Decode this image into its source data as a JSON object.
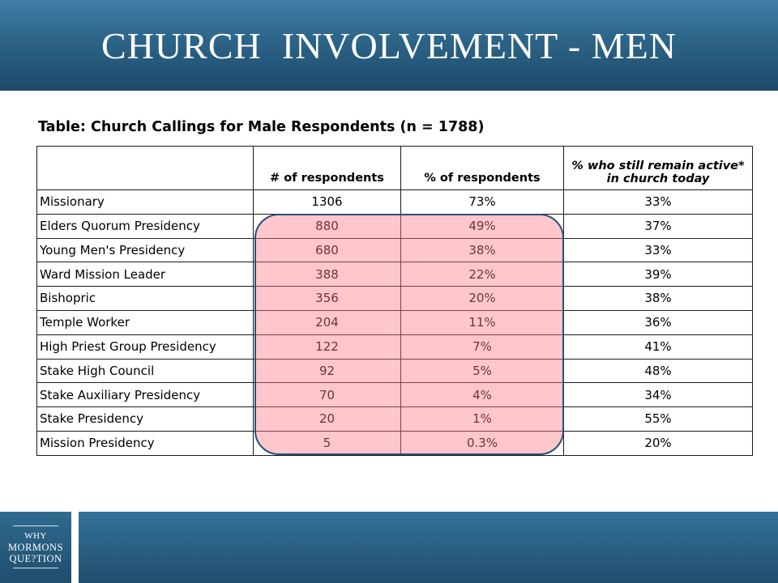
{
  "slide": {
    "title": "CHURCH  INVOLVEMENT - MEN"
  },
  "table": {
    "caption": "Table: Church Callings for Male Respondents (n = 1788)",
    "headers": [
      "",
      "# of respondents",
      "% of respondents",
      "% who still remain active* in church today"
    ],
    "rows": [
      [
        "Missionary",
        "1306",
        "73%",
        "33%"
      ],
      [
        "Elders Quorum Presidency",
        "880",
        "49%",
        "37%"
      ],
      [
        "Young Men's Presidency",
        "680",
        "38%",
        "33%"
      ],
      [
        "Ward Mission Leader",
        "388",
        "22%",
        "39%"
      ],
      [
        "Bishopric",
        "356",
        "20%",
        "38%"
      ],
      [
        "Temple Worker",
        "204",
        "11%",
        "36%"
      ],
      [
        "High Priest Group Presidency",
        "122",
        "7%",
        "41%"
      ],
      [
        "Stake High Council",
        "92",
        "5%",
        "48%"
      ],
      [
        "Stake Auxiliary Presidency",
        "70",
        "4%",
        "34%"
      ],
      [
        "Stake Presidency",
        "20",
        "1%",
        "55%"
      ],
      [
        "Mission Presidency",
        "5",
        "0.3%",
        "20%"
      ]
    ]
  },
  "logo": {
    "lines": [
      "WHY",
      "MORMONS",
      "QUE?TION"
    ]
  },
  "colors": {
    "header": "#2c6488",
    "highlight_fill": "#ff7882",
    "highlight_border": "#27507a"
  }
}
